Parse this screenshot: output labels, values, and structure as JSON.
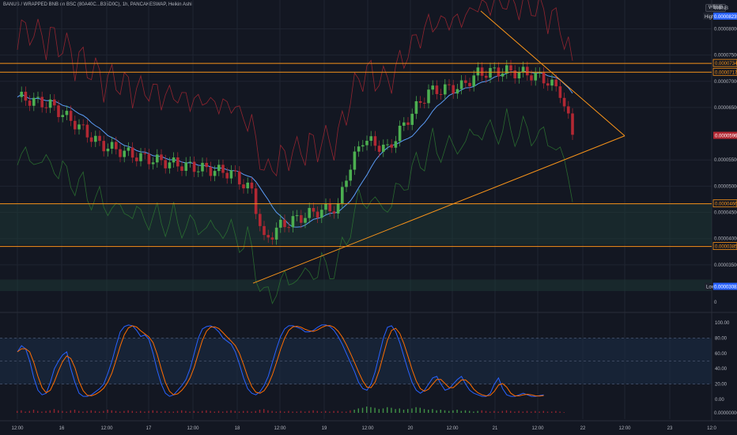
{
  "header": {
    "title": "BANUS / WRAPPED BNB on BSC (80A40C...B35D0C), 1h, PANCAKESWAP, Heikin Ashi",
    "currency": "WBNB"
  },
  "chart_data": {
    "type": "candlestick",
    "x_ticks": [
      "12:00",
      "16",
      "12:00",
      "17",
      "12:00",
      "18",
      "12:00",
      "19",
      "12:00",
      "20",
      "12:00",
      "21",
      "12:00",
      "22",
      "12:00",
      "23",
      "12:0"
    ],
    "price_ticks": [
      "0.00008000",
      "0.00007500",
      "0.00007000",
      "0.00006500",
      "0.00005500",
      "0.00005000",
      "0.00004500",
      "0.00004000",
      "0.00003500"
    ],
    "price_range": [
      3e-05,
      8.55e-05
    ],
    "price_labels": {
      "high_label": "High",
      "high": "0.00008235",
      "low_label": "Low",
      "low": "0.00003082",
      "last": "0.00005962"
    },
    "levels": [
      "0.00007342",
      "0.00007173",
      "0.00004664",
      "0.00003851"
    ],
    "triangle": {
      "apex_price": 5.96e-05,
      "upper_start_price": 8.34e-05,
      "lower_start_price": 3.15e-05
    },
    "bands": [
      {
        "from": 3.88e-05,
        "to": 4.66e-05
      },
      {
        "from": 3e-05,
        "to": 3.22e-05
      }
    ],
    "volume_axis_label": "0",
    "oscillator": {
      "ticks": [
        "100.00",
        "80.00",
        "60.00",
        "40.00",
        "20.00",
        "0.00"
      ],
      "upper_band": 80,
      "lower_band": 20,
      "k": [
        62,
        70,
        66,
        50,
        28,
        12,
        6,
        8,
        22,
        40,
        50,
        58,
        62,
        40,
        22,
        8,
        4,
        4,
        6,
        10,
        14,
        20,
        34,
        50,
        70,
        88,
        95,
        97,
        96,
        90,
        82,
        84,
        78,
        60,
        38,
        20,
        8,
        4,
        6,
        12,
        18,
        26,
        40,
        60,
        80,
        92,
        95,
        96,
        93,
        88,
        80,
        76,
        72,
        62,
        46,
        28,
        14,
        8,
        6,
        10,
        18,
        30,
        48,
        66,
        82,
        92,
        96,
        96,
        94,
        92,
        88,
        88,
        90,
        94,
        97,
        97,
        95,
        90,
        82,
        72,
        60,
        48,
        36,
        22,
        14,
        12,
        20,
        36,
        58,
        80,
        94,
        96,
        88,
        74,
        56,
        38,
        22,
        12,
        8,
        12,
        20,
        28,
        30,
        20,
        12,
        14,
        20,
        26,
        30,
        20,
        12,
        8,
        6,
        4,
        4,
        8,
        20,
        28,
        14,
        6,
        4,
        4,
        6,
        8,
        6,
        4,
        4,
        5,
        6
      ]
    },
    "volume": [
      0.3,
      0.4,
      0.2,
      0.3,
      0.5,
      0.3,
      0.2,
      0.3,
      0.4,
      0.6,
      0.4,
      0.3,
      0.2,
      0.4,
      0.5,
      0.3,
      0.2,
      0.3,
      0.4,
      0.3,
      0.2,
      0.3,
      0.5,
      0.4,
      0.3,
      0.2,
      0.3,
      0.4,
      0.3,
      0.2,
      0.3,
      0.2,
      0.3,
      0.4,
      0.3,
      0.2,
      0.3,
      0.2,
      0.2,
      0.3,
      0.4,
      0.3,
      0.2,
      0.3,
      0.2,
      0.3,
      0.4,
      0.3,
      0.2,
      0.3,
      0.2,
      0.3,
      0.4,
      0.3,
      0.2,
      0.3,
      0.3,
      0.2,
      0.3,
      0.5,
      0.6,
      0.4,
      0.3,
      0.2,
      0.3,
      0.2,
      0.3,
      0.2,
      0.2,
      0.3,
      0.2,
      0.3,
      0.4,
      0.3,
      0.2,
      0.3,
      0.2,
      0.3,
      0.3,
      0.2,
      0.2,
      0.4,
      0.5,
      0.7,
      0.8,
      1.0,
      0.9,
      0.8,
      0.6,
      0.7,
      0.9,
      0.8,
      0.6,
      0.7,
      0.5,
      0.6,
      0.7,
      0.9,
      0.8,
      0.6,
      0.5,
      0.6,
      0.4,
      0.5,
      0.4,
      0.3,
      0.4,
      0.5,
      0.3,
      0.4,
      0.3,
      0.2,
      0.3,
      0.4,
      0.3,
      0.2,
      0.3,
      0.2,
      0.3,
      0.4,
      0.3,
      0.2,
      0.3,
      0.2,
      0.3,
      0.2,
      0.3,
      0.2,
      0.3,
      0.2,
      0.2,
      0.3,
      0.2,
      0.1
    ],
    "volume_up": [
      0,
      0,
      0,
      0,
      0,
      0,
      0,
      0,
      0,
      0,
      0,
      0,
      0,
      0,
      0,
      0,
      0,
      0,
      0,
      0,
      0,
      0,
      0,
      0,
      0,
      0,
      0,
      0,
      0,
      0,
      0,
      0,
      0,
      0,
      0,
      0,
      0,
      0,
      0,
      0,
      0,
      0,
      0,
      0,
      0,
      0,
      0,
      0,
      0,
      0,
      0,
      0,
      0,
      0,
      0,
      0,
      0,
      0,
      0,
      0,
      0,
      0,
      0,
      0,
      0,
      0,
      0,
      0,
      0,
      0,
      0,
      0,
      0,
      0,
      0,
      0,
      0,
      0,
      0,
      0,
      0,
      0,
      1,
      1,
      1,
      1,
      1,
      1,
      1,
      1,
      1,
      1,
      1,
      1,
      1,
      1,
      1,
      1,
      1,
      1,
      1,
      1,
      1,
      1,
      1,
      1,
      1,
      1,
      1,
      1,
      1,
      1,
      1,
      0,
      0,
      0,
      0,
      0,
      0,
      0,
      0,
      0,
      0,
      0,
      0,
      0,
      0,
      0,
      0,
      0,
      0,
      0,
      0,
      0
    ]
  }
}
